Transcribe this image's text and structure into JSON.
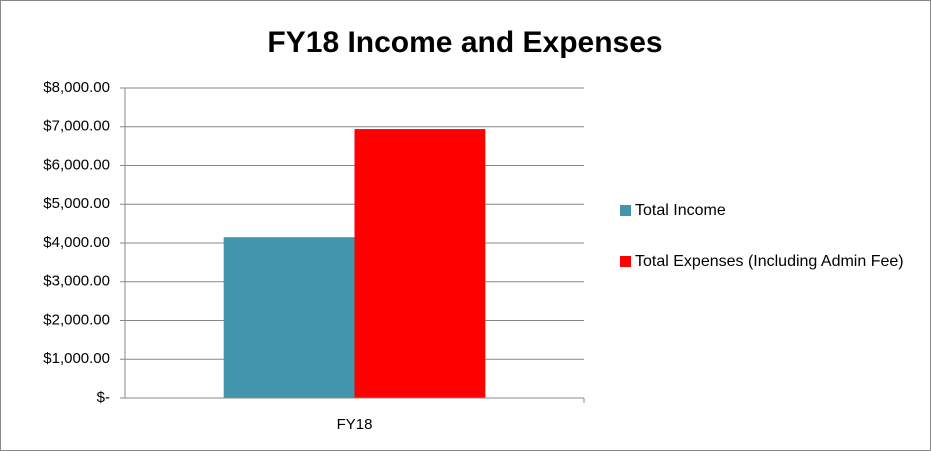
{
  "chart_data": {
    "type": "bar",
    "title": "FY18 Income and Expenses",
    "categories": [
      "FY18"
    ],
    "series": [
      {
        "name": "Total Income",
        "color": "#4394ad",
        "values": [
          4150
        ]
      },
      {
        "name": "Total Expenses (Including Admin Fee)",
        "color": "#ff0000",
        "values": [
          6940
        ]
      }
    ],
    "ylim": [
      0,
      8000
    ],
    "yticks": [
      {
        "value": 0,
        "label": "$-"
      },
      {
        "value": 1000,
        "label": "$1,000.00"
      },
      {
        "value": 2000,
        "label": "$2,000.00"
      },
      {
        "value": 3000,
        "label": "$3,000.00"
      },
      {
        "value": 4000,
        "label": "$4,000.00"
      },
      {
        "value": 5000,
        "label": "$5,000.00"
      },
      {
        "value": 6000,
        "label": "$6,000.00"
      },
      {
        "value": 7000,
        "label": "$7,000.00"
      },
      {
        "value": 8000,
        "label": "$8,000.00"
      }
    ],
    "grid": true,
    "legend": "right"
  }
}
